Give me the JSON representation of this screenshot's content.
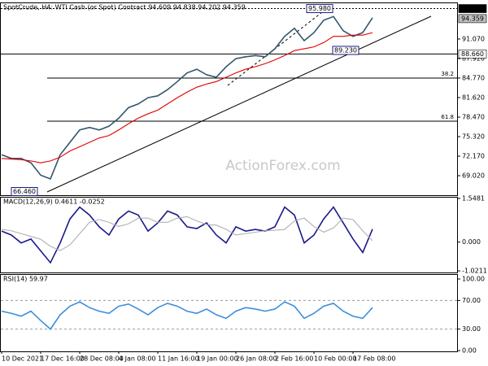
{
  "chart_data": [
    {
      "type": "line",
      "title": "SpotCrude, H4:  WTI Cash (or Spot) Contract  94.609 94.838 94.202 94.359",
      "watermark": "ActionForex.com",
      "ylim": [
        65.87,
        96.97
      ],
      "yticks": [
        {
          "value": 91.07,
          "label": "91.070"
        },
        {
          "value": 87.92,
          "label": "87.920"
        },
        {
          "value": 84.77,
          "label": "84.770"
        },
        {
          "value": 81.62,
          "label": "81.620"
        },
        {
          "value": 78.47,
          "label": "78.470"
        },
        {
          "value": 75.32,
          "label": "75.320"
        },
        {
          "value": 72.17,
          "label": "72.170"
        },
        {
          "value": 69.02,
          "label": "69.020"
        }
      ],
      "series": [
        {
          "color": "#33566b",
          "values": [
            72.4,
            71.8,
            71.8,
            71.1,
            69.1,
            68.5,
            72.4,
            74.4,
            76.4,
            76.8,
            76.4,
            77.0,
            78.3,
            80.0,
            80.6,
            81.6,
            81.9,
            82.9,
            84.2,
            85.6,
            86.2,
            85.3,
            84.9,
            86.6,
            87.9,
            88.2,
            88.4,
            88.2,
            89.5,
            91.5,
            92.8,
            90.8,
            92.1,
            94.1,
            94.7,
            92.4,
            91.5,
            92.1,
            94.5
          ]
        },
        {
          "color": "#e00000",
          "values": [
            71.8,
            71.7,
            71.6,
            71.4,
            71.1,
            71.4,
            72.0,
            73.0,
            73.7,
            74.4,
            75.1,
            75.5,
            76.4,
            77.4,
            78.3,
            79.0,
            79.6,
            80.6,
            81.6,
            82.5,
            83.3,
            83.8,
            84.2,
            84.9,
            85.6,
            86.2,
            86.6,
            87.1,
            87.7,
            88.4,
            89.2,
            89.5,
            89.8,
            90.5,
            91.5,
            91.5,
            91.7,
            91.7,
            92.1
          ]
        }
      ],
      "price_labels": [
        {
          "value": 95.98,
          "label": "95.980",
          "color": "#000000",
          "text_color": "#ffffff",
          "line": "dotted"
        },
        {
          "value": 94.359,
          "label": "94.359",
          "color": "#c0c0c0",
          "text_color": "#ffffff"
        },
        {
          "value": 88.66,
          "label": "88.660",
          "color": "#ffffff",
          "text_color": "#000000",
          "line": "solid"
        }
      ],
      "levels": [
        {
          "value": 84.77,
          "label": "38.2"
        },
        {
          "value": 77.81,
          "label": "61.8"
        }
      ],
      "annotations": [
        {
          "value": 95.98,
          "label": "95.980"
        },
        {
          "value": 66.46,
          "label": "66.460"
        },
        {
          "value": 89.23,
          "label": "89.230"
        }
      ]
    },
    {
      "type": "line",
      "title": "MACD(12,26,9) 0.4611 -0.0252",
      "ylim": [
        -1.077,
        1.604
      ],
      "yticks": [
        1.5481,
        {
          "value": 0,
          "label": "0.000"
        },
        -1.0211
      ],
      "series": [
        {
          "color": "#1a1a8c",
          "values": [
            0.39,
            0.25,
            -0.03,
            0.11,
            -0.31,
            -0.73,
            -0.03,
            0.82,
            1.24,
            0.96,
            0.54,
            0.25,
            0.82,
            1.1,
            0.96,
            0.39,
            0.68,
            1.1,
            0.96,
            0.54,
            0.48,
            0.68,
            0.25,
            -0.03,
            0.54,
            0.39,
            0.45,
            0.39,
            0.54,
            1.24,
            0.96,
            -0.03,
            0.25,
            0.82,
            1.24,
            0.68,
            0.11,
            -0.37,
            0.46
          ]
        },
        {
          "color": "#b0b0b0",
          "values": [
            0.45,
            0.4,
            0.3,
            0.2,
            0.1,
            -0.15,
            -0.3,
            -0.1,
            0.3,
            0.7,
            0.8,
            0.7,
            0.55,
            0.65,
            0.85,
            0.85,
            0.7,
            0.7,
            0.85,
            0.9,
            0.75,
            0.62,
            0.6,
            0.45,
            0.25,
            0.3,
            0.35,
            0.4,
            0.42,
            0.45,
            0.75,
            0.85,
            0.55,
            0.35,
            0.5,
            0.85,
            0.8,
            0.4,
            0.05
          ]
        }
      ]
    },
    {
      "type": "line",
      "title": "RSI(14) 59.97",
      "ylim": [
        -1.1,
        106.8
      ],
      "yticks": [
        {
          "value": 100,
          "label": "100.00"
        },
        {
          "value": 70,
          "label": "70.00"
        },
        {
          "value": 30,
          "label": "30.00"
        },
        {
          "value": 0,
          "label": "0.00"
        }
      ],
      "levels": [
        70,
        30
      ],
      "categories": [
        "10 Dec 2021",
        null,
        null,
        null,
        "17 Dec 16:00",
        null,
        null,
        null,
        "28 Dec 08:00",
        null,
        null,
        null,
        "4 Jan 08:00",
        null,
        null,
        null,
        "11 Jan 16:00",
        null,
        null,
        null,
        "19 Jan 00:00",
        null,
        null,
        null,
        "26 Jan 08:00",
        null,
        null,
        null,
        "2 Feb 16:00",
        null,
        null,
        null,
        "10 Feb 00:00",
        null,
        null,
        null,
        "17 Feb 08:00",
        null,
        null
      ],
      "series": [
        {
          "color": "#3c8fdc",
          "values": [
            55,
            52,
            48,
            55,
            42,
            30,
            50,
            62,
            68,
            60,
            55,
            52,
            62,
            65,
            58,
            50,
            60,
            66,
            62,
            55,
            52,
            58,
            50,
            45,
            55,
            60,
            58,
            55,
            58,
            68,
            62,
            45,
            52,
            62,
            66,
            55,
            48,
            45,
            60
          ]
        }
      ]
    }
  ]
}
